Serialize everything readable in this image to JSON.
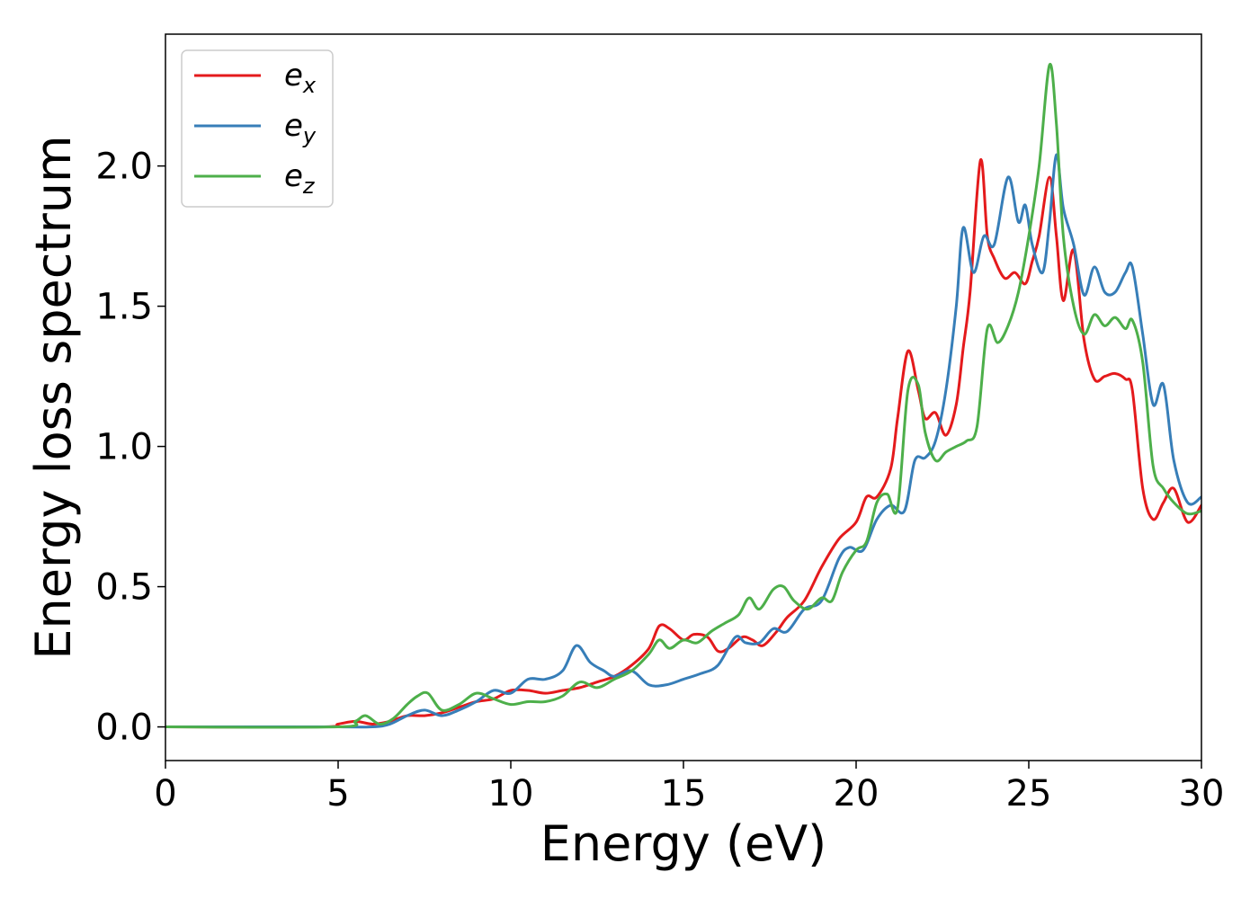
{
  "chart_data": {
    "type": "line",
    "xlabel": "Energy (eV)",
    "ylabel": "Energy loss spectrum",
    "xlim": [
      0,
      30
    ],
    "ylim": [
      -0.12,
      2.47
    ],
    "x_ticks": [
      0,
      5,
      10,
      15,
      20,
      25,
      30
    ],
    "x_tick_labels": [
      "0",
      "5",
      "10",
      "15",
      "20",
      "25",
      "30"
    ],
    "y_ticks": [
      0.0,
      0.5,
      1.0,
      1.5,
      2.0
    ],
    "y_tick_labels": [
      "0.0",
      "0.5",
      "1.0",
      "1.5",
      "2.0"
    ],
    "grid": false,
    "legend_position": "top-left",
    "series": [
      {
        "name": "e_x",
        "legend_base": "e",
        "legend_sub": "x",
        "color": "#e41a1c",
        "x": [
          0,
          4.5,
          5.0,
          5.5,
          6.0,
          6.5,
          7.0,
          7.5,
          8.0,
          8.5,
          9.0,
          9.5,
          10.0,
          10.5,
          11.0,
          11.5,
          12.0,
          12.5,
          13.0,
          13.5,
          14.0,
          14.3,
          14.6,
          15.0,
          15.3,
          15.7,
          16.0,
          16.3,
          16.7,
          17.0,
          17.3,
          17.7,
          18.0,
          18.5,
          19.0,
          19.5,
          20.0,
          20.3,
          20.6,
          21.0,
          21.2,
          21.5,
          21.8,
          22.0,
          22.3,
          22.6,
          22.9,
          23.1,
          23.3,
          23.6,
          23.8,
          24.0,
          24.3,
          24.6,
          24.9,
          25.1,
          25.3,
          25.6,
          25.8,
          26.0,
          26.3,
          26.6,
          26.9,
          27.2,
          27.5,
          27.8,
          28.0,
          28.3,
          28.6,
          28.9,
          29.2,
          29.6,
          30.0
        ],
        "y": [
          0.0,
          0.0,
          0.01,
          0.02,
          0.01,
          0.02,
          0.04,
          0.04,
          0.05,
          0.07,
          0.09,
          0.1,
          0.13,
          0.13,
          0.12,
          0.13,
          0.14,
          0.16,
          0.18,
          0.22,
          0.28,
          0.36,
          0.35,
          0.31,
          0.33,
          0.32,
          0.27,
          0.28,
          0.32,
          0.31,
          0.29,
          0.34,
          0.39,
          0.45,
          0.57,
          0.67,
          0.73,
          0.82,
          0.82,
          0.92,
          1.1,
          1.34,
          1.2,
          1.1,
          1.12,
          1.04,
          1.15,
          1.35,
          1.55,
          2.02,
          1.75,
          1.67,
          1.6,
          1.62,
          1.58,
          1.66,
          1.75,
          1.96,
          1.75,
          1.52,
          1.7,
          1.38,
          1.24,
          1.25,
          1.26,
          1.24,
          1.2,
          0.85,
          0.74,
          0.8,
          0.85,
          0.73,
          0.79
        ]
      },
      {
        "name": "e_y",
        "legend_base": "e",
        "legend_sub": "y",
        "color": "#377eb8",
        "x": [
          0,
          5.0,
          6.0,
          6.5,
          7.0,
          7.5,
          8.0,
          8.5,
          9.0,
          9.5,
          10.0,
          10.5,
          11.0,
          11.5,
          11.9,
          12.3,
          12.7,
          13.0,
          13.5,
          14.0,
          14.5,
          15.0,
          15.5,
          16.0,
          16.5,
          16.8,
          17.2,
          17.6,
          18.0,
          18.5,
          19.0,
          19.5,
          19.8,
          20.2,
          20.6,
          21.0,
          21.4,
          21.7,
          22.0,
          22.3,
          22.6,
          22.9,
          23.1,
          23.4,
          23.7,
          24.0,
          24.4,
          24.7,
          24.9,
          25.1,
          25.4,
          25.6,
          25.8,
          26.0,
          26.3,
          26.6,
          26.9,
          27.2,
          27.5,
          27.8,
          28.0,
          28.3,
          28.6,
          28.9,
          29.2,
          29.6,
          30.0
        ],
        "y": [
          0.0,
          0.0,
          0.0,
          0.01,
          0.04,
          0.06,
          0.04,
          0.06,
          0.09,
          0.13,
          0.12,
          0.17,
          0.17,
          0.2,
          0.29,
          0.23,
          0.2,
          0.18,
          0.2,
          0.15,
          0.15,
          0.17,
          0.19,
          0.22,
          0.32,
          0.3,
          0.3,
          0.35,
          0.34,
          0.42,
          0.45,
          0.6,
          0.64,
          0.63,
          0.74,
          0.79,
          0.77,
          0.95,
          0.96,
          1.02,
          1.2,
          1.5,
          1.78,
          1.62,
          1.75,
          1.72,
          1.96,
          1.8,
          1.86,
          1.72,
          1.62,
          1.8,
          2.04,
          1.85,
          1.72,
          1.54,
          1.64,
          1.55,
          1.55,
          1.62,
          1.64,
          1.4,
          1.15,
          1.22,
          0.95,
          0.8,
          0.82
        ]
      },
      {
        "name": "e_z",
        "legend_base": "e",
        "legend_sub": "z",
        "color": "#4daf4a",
        "x": [
          0,
          5.0,
          5.5,
          5.8,
          6.2,
          6.6,
          7.0,
          7.3,
          7.6,
          8.0,
          8.5,
          9.0,
          9.5,
          10.0,
          10.5,
          11.0,
          11.5,
          12.0,
          12.5,
          13.0,
          13.5,
          14.0,
          14.3,
          14.6,
          15.0,
          15.4,
          15.8,
          16.2,
          16.6,
          16.9,
          17.2,
          17.6,
          17.9,
          18.2,
          18.6,
          19.0,
          19.3,
          19.6,
          20.0,
          20.3,
          20.6,
          20.9,
          21.2,
          21.5,
          21.8,
          22.0,
          22.3,
          22.6,
          22.9,
          23.2,
          23.5,
          23.8,
          24.1,
          24.4,
          24.7,
          25.0,
          25.3,
          25.6,
          25.8,
          26.0,
          26.3,
          26.6,
          26.9,
          27.2,
          27.5,
          27.8,
          28.0,
          28.3,
          28.6,
          28.9,
          29.2,
          29.6,
          30.0
        ],
        "y": [
          0.0,
          0.0,
          0.02,
          0.04,
          0.01,
          0.03,
          0.08,
          0.11,
          0.12,
          0.06,
          0.08,
          0.12,
          0.1,
          0.08,
          0.09,
          0.09,
          0.11,
          0.16,
          0.14,
          0.17,
          0.2,
          0.26,
          0.31,
          0.28,
          0.31,
          0.3,
          0.34,
          0.37,
          0.4,
          0.46,
          0.42,
          0.49,
          0.5,
          0.45,
          0.42,
          0.46,
          0.45,
          0.55,
          0.63,
          0.66,
          0.8,
          0.83,
          0.78,
          1.2,
          1.22,
          1.05,
          0.95,
          0.98,
          1.0,
          1.02,
          1.07,
          1.42,
          1.37,
          1.43,
          1.55,
          1.75,
          2.0,
          2.36,
          2.15,
          1.75,
          1.5,
          1.4,
          1.47,
          1.43,
          1.46,
          1.42,
          1.45,
          1.3,
          0.93,
          0.85,
          0.8,
          0.76,
          0.77
        ]
      }
    ]
  }
}
